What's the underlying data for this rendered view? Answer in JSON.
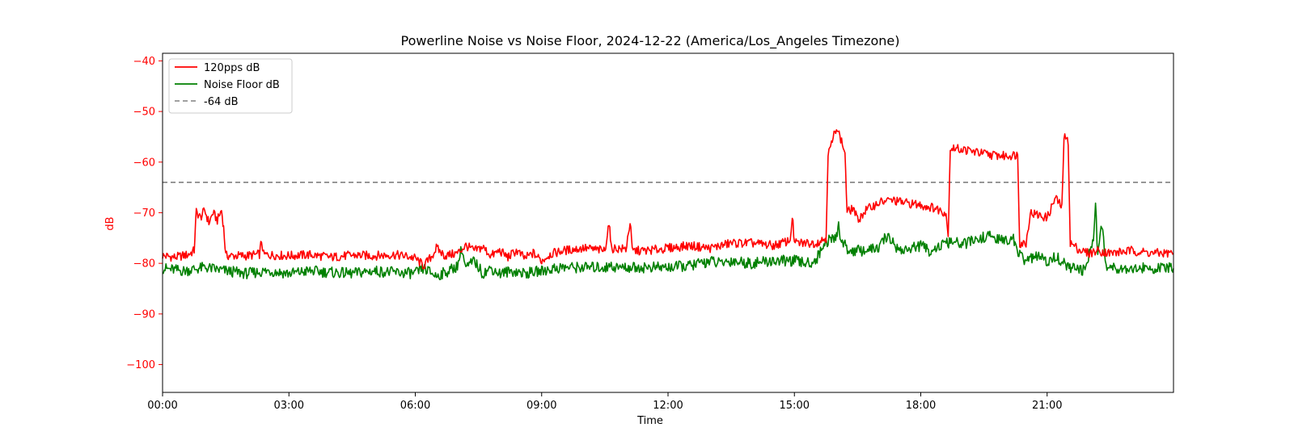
{
  "chart_data": {
    "type": "line",
    "title": "Powerline Noise vs Noise Floor, 2024-12-22 (America/Los_Angeles Timezone)",
    "xlabel": "Time",
    "ylabel": "dB",
    "xlim_hours": [
      0,
      24
    ],
    "ylim": [
      -105.5,
      -38.5
    ],
    "x_ticks": [
      "00:00",
      "03:00",
      "06:00",
      "09:00",
      "12:00",
      "15:00",
      "18:00",
      "21:00"
    ],
    "y_ticks": [
      -40,
      -50,
      -60,
      -70,
      -80,
      -90,
      -100
    ],
    "grid": false,
    "legend_position": "upper-left",
    "colors": {
      "signal": "#ff0000",
      "floor": "#008000",
      "threshold": "#808080",
      "ylabel": "#ff0000"
    },
    "threshold": {
      "name": "-64 dB",
      "value": -64,
      "style": "dashed"
    },
    "series": [
      {
        "name": "120pps dB",
        "color": "#ff0000",
        "points": [
          [
            0.0,
            -78.5
          ],
          [
            0.3,
            -78.8
          ],
          [
            0.6,
            -78.3
          ],
          [
            0.75,
            -77.5
          ],
          [
            0.8,
            -69.8
          ],
          [
            0.9,
            -71
          ],
          [
            1.0,
            -69.5
          ],
          [
            1.1,
            -72
          ],
          [
            1.2,
            -70
          ],
          [
            1.3,
            -71.5
          ],
          [
            1.4,
            -69.5
          ],
          [
            1.45,
            -73
          ],
          [
            1.5,
            -78.5
          ],
          [
            2.0,
            -78.5
          ],
          [
            2.3,
            -78.2
          ],
          [
            2.35,
            -75.5
          ],
          [
            2.4,
            -78.3
          ],
          [
            3.0,
            -78.5
          ],
          [
            3.5,
            -78.3
          ],
          [
            4.0,
            -78.8
          ],
          [
            4.5,
            -78.4
          ],
          [
            5.0,
            -78.5
          ],
          [
            5.5,
            -78.3
          ],
          [
            5.8,
            -78.6
          ],
          [
            6.0,
            -79
          ],
          [
            6.2,
            -80.5
          ],
          [
            6.4,
            -78.5
          ],
          [
            6.5,
            -77
          ],
          [
            6.7,
            -78.5
          ],
          [
            7.0,
            -78
          ],
          [
            7.2,
            -76.5
          ],
          [
            7.4,
            -77.5
          ],
          [
            7.6,
            -76.8
          ],
          [
            7.8,
            -78.5
          ],
          [
            8.0,
            -77.5
          ],
          [
            8.2,
            -78.8
          ],
          [
            8.4,
            -77.5
          ],
          [
            8.6,
            -79
          ],
          [
            8.8,
            -78
          ],
          [
            9.0,
            -79.5
          ],
          [
            9.2,
            -78.2
          ],
          [
            9.5,
            -77.5
          ],
          [
            10.0,
            -77
          ],
          [
            10.5,
            -77.5
          ],
          [
            10.6,
            -71.8
          ],
          [
            10.65,
            -77
          ],
          [
            11.0,
            -77.2
          ],
          [
            11.1,
            -71.8
          ],
          [
            11.15,
            -77.5
          ],
          [
            11.5,
            -77.5
          ],
          [
            12.0,
            -77
          ],
          [
            12.5,
            -76.5
          ],
          [
            13.0,
            -77
          ],
          [
            13.5,
            -76
          ],
          [
            14.0,
            -76
          ],
          [
            14.5,
            -76.5
          ],
          [
            14.9,
            -75.5
          ],
          [
            14.95,
            -70.5
          ],
          [
            15.0,
            -76
          ],
          [
            15.5,
            -76
          ],
          [
            15.75,
            -75
          ],
          [
            15.8,
            -58.5
          ],
          [
            15.9,
            -56
          ],
          [
            16.0,
            -52.8
          ],
          [
            16.1,
            -55.5
          ],
          [
            16.2,
            -58
          ],
          [
            16.25,
            -70
          ],
          [
            16.4,
            -69
          ],
          [
            16.5,
            -71.5
          ],
          [
            16.7,
            -69.5
          ],
          [
            17.0,
            -68
          ],
          [
            17.3,
            -67.5
          ],
          [
            17.6,
            -68
          ],
          [
            18.0,
            -68.5
          ],
          [
            18.3,
            -69
          ],
          [
            18.6,
            -70
          ],
          [
            18.65,
            -75
          ],
          [
            18.7,
            -57.2
          ],
          [
            19.0,
            -57.5
          ],
          [
            19.3,
            -58
          ],
          [
            19.6,
            -58.5
          ],
          [
            20.0,
            -58.8
          ],
          [
            20.3,
            -58.5
          ],
          [
            20.35,
            -76
          ],
          [
            20.5,
            -76
          ],
          [
            20.6,
            -70
          ],
          [
            20.8,
            -70.5
          ],
          [
            21.0,
            -71
          ],
          [
            21.2,
            -67
          ],
          [
            21.35,
            -69
          ],
          [
            21.4,
            -55
          ],
          [
            21.5,
            -56
          ],
          [
            21.55,
            -76
          ],
          [
            21.8,
            -77.5
          ],
          [
            22.0,
            -78
          ],
          [
            22.2,
            -77.5
          ],
          [
            22.5,
            -78
          ],
          [
            23.0,
            -77.5
          ],
          [
            23.5,
            -78
          ],
          [
            24.0,
            -78
          ]
        ]
      },
      {
        "name": "Noise Floor dB",
        "color": "#008000",
        "points": [
          [
            0.0,
            -81
          ],
          [
            0.5,
            -81.5
          ],
          [
            1.0,
            -80.8
          ],
          [
            1.5,
            -81.5
          ],
          [
            2.0,
            -82
          ],
          [
            2.5,
            -81.5
          ],
          [
            3.0,
            -82
          ],
          [
            3.5,
            -81.5
          ],
          [
            4.0,
            -81.8
          ],
          [
            4.5,
            -82
          ],
          [
            5.0,
            -81.5
          ],
          [
            5.5,
            -81.8
          ],
          [
            6.0,
            -82
          ],
          [
            6.2,
            -81
          ],
          [
            6.5,
            -82.5
          ],
          [
            6.8,
            -81.5
          ],
          [
            7.0,
            -80.5
          ],
          [
            7.1,
            -77
          ],
          [
            7.2,
            -81
          ],
          [
            7.4,
            -79.5
          ],
          [
            7.6,
            -82
          ],
          [
            7.8,
            -81
          ],
          [
            8.0,
            -82
          ],
          [
            8.3,
            -81.5
          ],
          [
            8.6,
            -82
          ],
          [
            9.0,
            -81.5
          ],
          [
            9.3,
            -81
          ],
          [
            9.5,
            -80.8
          ],
          [
            10.0,
            -80.8
          ],
          [
            10.6,
            -80.8
          ],
          [
            10.65,
            -79.8
          ],
          [
            10.7,
            -80.8
          ],
          [
            11.5,
            -80.8
          ],
          [
            12.0,
            -80.8
          ],
          [
            12.5,
            -80.5
          ],
          [
            13.0,
            -79.5
          ],
          [
            13.2,
            -80
          ],
          [
            13.5,
            -79.5
          ],
          [
            14.0,
            -80
          ],
          [
            14.5,
            -79.5
          ],
          [
            15.0,
            -79.5
          ],
          [
            15.3,
            -80
          ],
          [
            15.5,
            -79.5
          ],
          [
            15.6,
            -78
          ],
          [
            15.7,
            -76
          ],
          [
            16.0,
            -74.8
          ],
          [
            16.05,
            -72
          ],
          [
            16.1,
            -75.5
          ],
          [
            16.3,
            -77.5
          ],
          [
            16.6,
            -77.5
          ],
          [
            17.0,
            -77
          ],
          [
            17.2,
            -74.5
          ],
          [
            17.5,
            -77.5
          ],
          [
            17.8,
            -77
          ],
          [
            18.0,
            -76.5
          ],
          [
            18.2,
            -77.5
          ],
          [
            18.5,
            -76.5
          ],
          [
            18.7,
            -75.8
          ],
          [
            19.0,
            -76.2
          ],
          [
            19.3,
            -75.5
          ],
          [
            19.6,
            -74.5
          ],
          [
            19.9,
            -75.5
          ],
          [
            20.2,
            -75.2
          ],
          [
            20.35,
            -78.5
          ],
          [
            20.5,
            -79.5
          ],
          [
            20.8,
            -78.5
          ],
          [
            21.0,
            -80
          ],
          [
            21.2,
            -78.5
          ],
          [
            21.4,
            -80
          ],
          [
            21.5,
            -80.8
          ],
          [
            21.9,
            -81.5
          ],
          [
            22.1,
            -75
          ],
          [
            22.15,
            -67
          ],
          [
            22.2,
            -79
          ],
          [
            22.3,
            -72
          ],
          [
            22.4,
            -80.5
          ],
          [
            22.6,
            -80.8
          ],
          [
            23.0,
            -81
          ],
          [
            23.5,
            -81
          ],
          [
            24.0,
            -81
          ]
        ]
      }
    ]
  }
}
